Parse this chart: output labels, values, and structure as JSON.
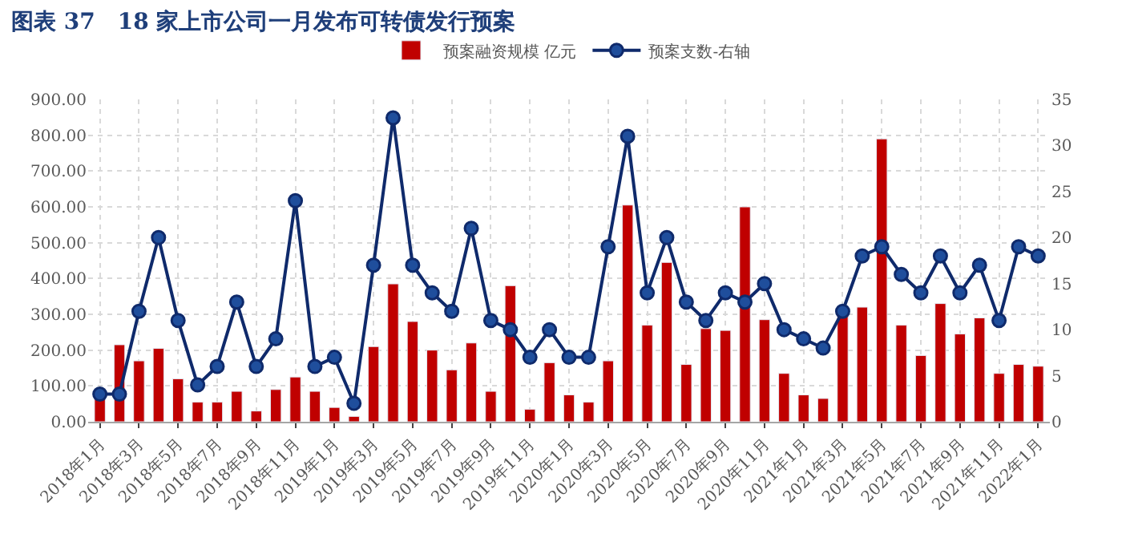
{
  "chart_data": {
    "type": "bar",
    "title": "图表 37　18 家上市公司一月发布可转债发行预案",
    "categories": [
      "2018年1月",
      null,
      "2018年3月",
      null,
      "2018年5月",
      null,
      "2018年7月",
      null,
      "2018年9月",
      null,
      "2018年11月",
      null,
      "2019年1月",
      null,
      "2019年3月",
      null,
      "2019年5月",
      null,
      "2019年7月",
      null,
      "2019年9月",
      null,
      "2019年11月",
      null,
      "2020年1月",
      null,
      "2020年3月",
      null,
      "2020年5月",
      null,
      "2020年7月",
      null,
      "2020年9月",
      null,
      "2020年11月",
      null,
      "2021年1月",
      null,
      "2021年3月",
      null,
      "2021年5月",
      null,
      "2021年7月",
      null,
      "2021年9月",
      null,
      "2021年11月",
      null,
      "2022年1月"
    ],
    "series": [
      {
        "name": "预案融资规模 亿元",
        "color": "#c00000",
        "values": [
          70,
          215,
          170,
          205,
          120,
          55,
          55,
          85,
          30,
          90,
          125,
          85,
          40,
          15,
          210,
          385,
          280,
          200,
          145,
          220,
          85,
          380,
          35,
          165,
          75,
          55,
          170,
          605,
          270,
          445,
          160,
          260,
          255,
          600,
          285,
          135,
          75,
          65,
          300,
          320,
          790,
          270,
          185,
          330,
          245,
          290,
          135,
          160,
          155
        ]
      },
      {
        "name": "预案支数-右轴",
        "type": "line",
        "axis": "y2",
        "color": "#0f2a6b",
        "marker": "circle",
        "values": [
          3,
          3,
          12,
          20,
          11,
          4,
          6,
          13,
          6,
          9,
          24,
          6,
          7,
          2,
          17,
          33,
          17,
          14,
          12,
          21,
          11,
          10,
          7,
          10,
          7,
          7,
          19,
          31,
          14,
          20,
          13,
          11,
          14,
          13,
          15,
          10,
          9,
          8,
          12,
          18,
          19,
          16,
          14,
          18,
          14,
          17,
          11,
          19,
          18
        ]
      }
    ],
    "ylim": [
      0,
      900
    ],
    "yticks": [
      {
        "value": 0,
        "label": "0.00"
      },
      {
        "value": 100,
        "label": "100.00"
      },
      {
        "value": 200,
        "label": "200.00"
      },
      {
        "value": 300,
        "label": "300.00"
      },
      {
        "value": 400,
        "label": "400.00"
      },
      {
        "value": 500,
        "label": "500.00"
      },
      {
        "value": 600,
        "label": "600.00"
      },
      {
        "value": 700,
        "label": "700.00"
      },
      {
        "value": 800,
        "label": "800.00"
      },
      {
        "value": 900,
        "label": "900.00"
      }
    ],
    "y2lim": [
      0,
      35
    ],
    "y2ticks": [
      0,
      5,
      10,
      15,
      20,
      25,
      30,
      35
    ],
    "grid": true,
    "legend": "top"
  }
}
